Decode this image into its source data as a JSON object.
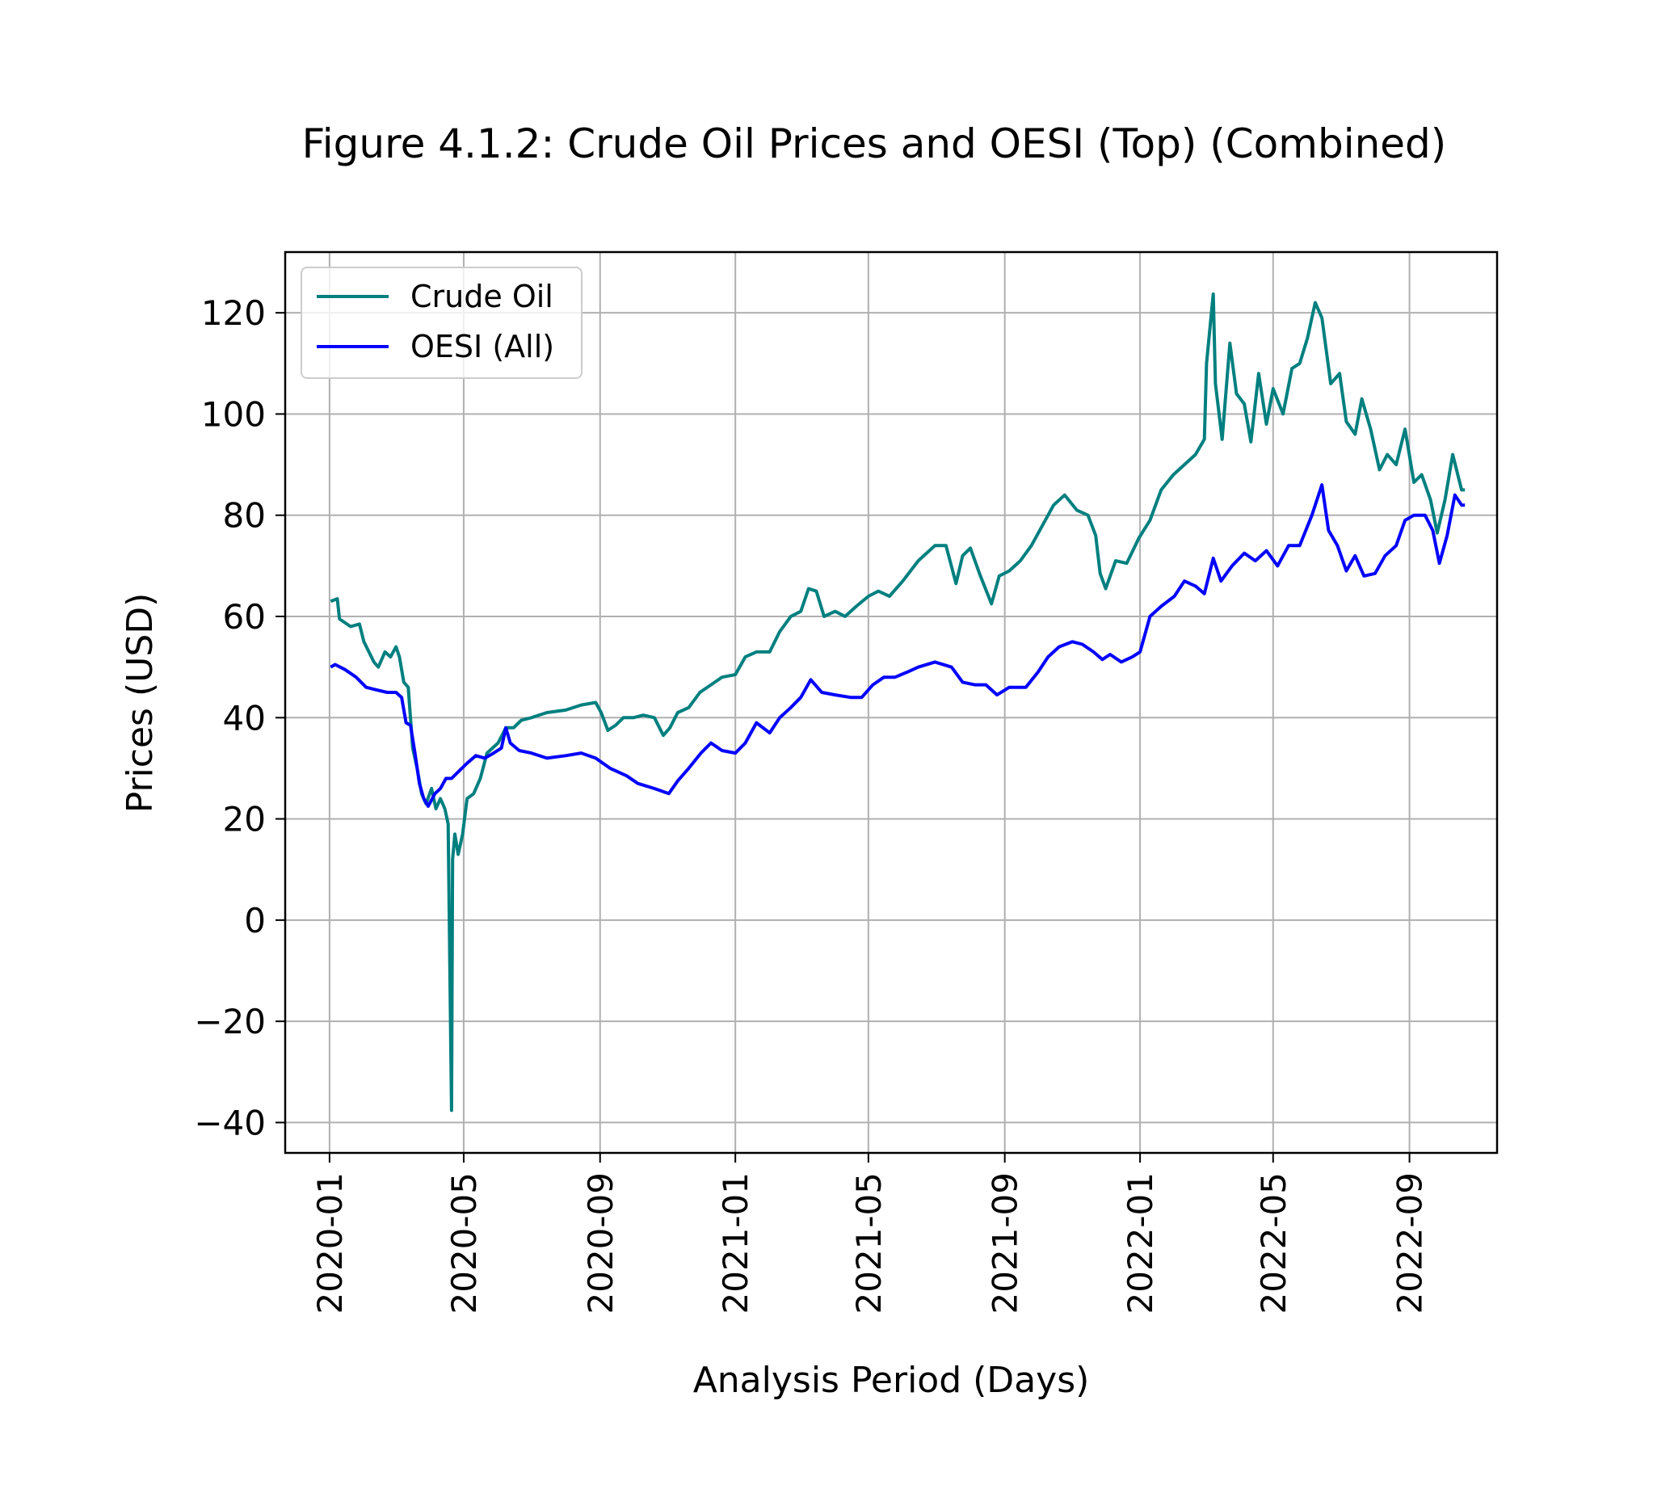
{
  "chart_data": {
    "type": "line",
    "title": "Figure 4.1.2: Crude Oil Prices and OESI (Top) (Combined)",
    "xlabel": "Analysis Period (Days)",
    "ylabel": "Prices (USD)",
    "xlim": [
      "2019-11-22",
      "2022-11-19"
    ],
    "ylim": [
      -46,
      132
    ],
    "x_ticks": [
      "2020-01",
      "2020-05",
      "2020-09",
      "2021-01",
      "2021-05",
      "2021-09",
      "2022-01",
      "2022-05",
      "2022-09"
    ],
    "y_ticks": [
      -40,
      -20,
      0,
      20,
      40,
      60,
      80,
      100,
      120
    ],
    "y_tick_labels": [
      "−40",
      "−20",
      "0",
      "20",
      "40",
      "60",
      "80",
      "100",
      "120"
    ],
    "grid": true,
    "legend_position": "top-left",
    "series": [
      {
        "name": "Crude Oil",
        "color": "#007f7f",
        "points": [
          [
            "2020-01-02",
            63
          ],
          [
            "2020-01-08",
            63.5
          ],
          [
            "2020-01-10",
            59.5
          ],
          [
            "2020-01-20",
            58
          ],
          [
            "2020-01-28",
            58.5
          ],
          [
            "2020-02-01",
            55
          ],
          [
            "2020-02-10",
            51
          ],
          [
            "2020-02-14",
            50
          ],
          [
            "2020-02-20",
            53
          ],
          [
            "2020-02-25",
            52
          ],
          [
            "2020-03-01",
            54
          ],
          [
            "2020-03-04",
            52
          ],
          [
            "2020-03-08",
            47
          ],
          [
            "2020-03-12",
            46
          ],
          [
            "2020-03-16",
            34
          ],
          [
            "2020-03-20",
            30
          ],
          [
            "2020-03-24",
            25
          ],
          [
            "2020-03-28",
            23
          ],
          [
            "2020-04-02",
            26
          ],
          [
            "2020-04-06",
            22
          ],
          [
            "2020-04-10",
            24
          ],
          [
            "2020-04-14",
            22
          ],
          [
            "2020-04-17",
            19
          ],
          [
            "2020-04-20",
            -37.6
          ],
          [
            "2020-04-21",
            12
          ],
          [
            "2020-04-23",
            17
          ],
          [
            "2020-04-26",
            13
          ],
          [
            "2020-04-30",
            17
          ],
          [
            "2020-05-04",
            24
          ],
          [
            "2020-05-10",
            25
          ],
          [
            "2020-05-16",
            28
          ],
          [
            "2020-05-22",
            33
          ],
          [
            "2020-06-01",
            35
          ],
          [
            "2020-06-08",
            38
          ],
          [
            "2020-06-15",
            38
          ],
          [
            "2020-06-22",
            39.5
          ],
          [
            "2020-07-01",
            40
          ],
          [
            "2020-07-15",
            41
          ],
          [
            "2020-08-01",
            41.5
          ],
          [
            "2020-08-15",
            42.5
          ],
          [
            "2020-08-28",
            43
          ],
          [
            "2020-09-02",
            41
          ],
          [
            "2020-09-08",
            37.5
          ],
          [
            "2020-09-15",
            38.5
          ],
          [
            "2020-09-22",
            40
          ],
          [
            "2020-10-01",
            40
          ],
          [
            "2020-10-10",
            40.5
          ],
          [
            "2020-10-20",
            40
          ],
          [
            "2020-10-28",
            36.5
          ],
          [
            "2020-11-03",
            38
          ],
          [
            "2020-11-10",
            41
          ],
          [
            "2020-11-20",
            42
          ],
          [
            "2020-11-30",
            45
          ],
          [
            "2020-12-10",
            46.5
          ],
          [
            "2020-12-20",
            48
          ],
          [
            "2021-01-01",
            48.5
          ],
          [
            "2021-01-10",
            52
          ],
          [
            "2021-01-20",
            53
          ],
          [
            "2021-02-01",
            53
          ],
          [
            "2021-02-10",
            57
          ],
          [
            "2021-02-20",
            60
          ],
          [
            "2021-03-01",
            61
          ],
          [
            "2021-03-08",
            65.5
          ],
          [
            "2021-03-15",
            65
          ],
          [
            "2021-03-22",
            60
          ],
          [
            "2021-04-01",
            61
          ],
          [
            "2021-04-10",
            60
          ],
          [
            "2021-04-20",
            62
          ],
          [
            "2021-05-01",
            64
          ],
          [
            "2021-05-10",
            65
          ],
          [
            "2021-05-20",
            64
          ],
          [
            "2021-06-01",
            67
          ],
          [
            "2021-06-15",
            71
          ],
          [
            "2021-06-30",
            74
          ],
          [
            "2021-07-10",
            74
          ],
          [
            "2021-07-19",
            66.5
          ],
          [
            "2021-07-25",
            72
          ],
          [
            "2021-08-01",
            73.5
          ],
          [
            "2021-08-10",
            68
          ],
          [
            "2021-08-20",
            62.5
          ],
          [
            "2021-08-27",
            68
          ],
          [
            "2021-09-05",
            69
          ],
          [
            "2021-09-15",
            71
          ],
          [
            "2021-09-25",
            74
          ],
          [
            "2021-10-05",
            78
          ],
          [
            "2021-10-15",
            82
          ],
          [
            "2021-10-25",
            84
          ],
          [
            "2021-11-05",
            81
          ],
          [
            "2021-11-15",
            80
          ],
          [
            "2021-11-22",
            76
          ],
          [
            "2021-11-26",
            68.5
          ],
          [
            "2021-12-01",
            65.5
          ],
          [
            "2021-12-10",
            71
          ],
          [
            "2021-12-20",
            70.5
          ],
          [
            "2021-12-31",
            75.5
          ],
          [
            "2022-01-10",
            79
          ],
          [
            "2022-01-20",
            85
          ],
          [
            "2022-01-31",
            88
          ],
          [
            "2022-02-10",
            90
          ],
          [
            "2022-02-20",
            92
          ],
          [
            "2022-02-28",
            95
          ],
          [
            "2022-03-02",
            110
          ],
          [
            "2022-03-08",
            123.7
          ],
          [
            "2022-03-10",
            106
          ],
          [
            "2022-03-16",
            95
          ],
          [
            "2022-03-23",
            114
          ],
          [
            "2022-03-29",
            104
          ],
          [
            "2022-04-05",
            102
          ],
          [
            "2022-04-11",
            94.5
          ],
          [
            "2022-04-18",
            108
          ],
          [
            "2022-04-25",
            98
          ],
          [
            "2022-05-01",
            105
          ],
          [
            "2022-05-10",
            100
          ],
          [
            "2022-05-18",
            109
          ],
          [
            "2022-05-25",
            110
          ],
          [
            "2022-06-01",
            115
          ],
          [
            "2022-06-08",
            122
          ],
          [
            "2022-06-14",
            119
          ],
          [
            "2022-06-22",
            106
          ],
          [
            "2022-06-30",
            108
          ],
          [
            "2022-07-06",
            98.5
          ],
          [
            "2022-07-14",
            96
          ],
          [
            "2022-07-20",
            103
          ],
          [
            "2022-07-28",
            97
          ],
          [
            "2022-08-05",
            89
          ],
          [
            "2022-08-12",
            92
          ],
          [
            "2022-08-20",
            90
          ],
          [
            "2022-08-28",
            97
          ],
          [
            "2022-09-05",
            86.5
          ],
          [
            "2022-09-12",
            88
          ],
          [
            "2022-09-20",
            83
          ],
          [
            "2022-09-26",
            76.5
          ],
          [
            "2022-10-03",
            83
          ],
          [
            "2022-10-10",
            92
          ],
          [
            "2022-10-18",
            85
          ],
          [
            "2022-10-21",
            85
          ]
        ]
      },
      {
        "name": "OESI (All)",
        "color": "#0000ff",
        "points": [
          [
            "2020-01-02",
            50
          ],
          [
            "2020-01-06",
            50.5
          ],
          [
            "2020-01-15",
            49.5
          ],
          [
            "2020-01-25",
            48
          ],
          [
            "2020-02-03",
            46
          ],
          [
            "2020-02-12",
            45.5
          ],
          [
            "2020-02-22",
            45
          ],
          [
            "2020-03-01",
            45
          ],
          [
            "2020-03-06",
            44
          ],
          [
            "2020-03-10",
            39
          ],
          [
            "2020-03-14",
            38.5
          ],
          [
            "2020-03-18",
            33
          ],
          [
            "2020-03-22",
            27
          ],
          [
            "2020-03-26",
            24
          ],
          [
            "2020-03-30",
            22.5
          ],
          [
            "2020-04-05",
            25
          ],
          [
            "2020-04-10",
            26
          ],
          [
            "2020-04-15",
            28
          ],
          [
            "2020-04-20",
            28
          ],
          [
            "2020-04-27",
            29.5
          ],
          [
            "2020-05-04",
            31
          ],
          [
            "2020-05-12",
            32.5
          ],
          [
            "2020-05-20",
            32
          ],
          [
            "2020-05-28",
            33
          ],
          [
            "2020-06-04",
            34
          ],
          [
            "2020-06-08",
            38
          ],
          [
            "2020-06-12",
            35
          ],
          [
            "2020-06-20",
            33.5
          ],
          [
            "2020-07-01",
            33
          ],
          [
            "2020-07-15",
            32
          ],
          [
            "2020-08-01",
            32.5
          ],
          [
            "2020-08-15",
            33
          ],
          [
            "2020-08-28",
            32
          ],
          [
            "2020-09-10",
            30
          ],
          [
            "2020-09-25",
            28.5
          ],
          [
            "2020-10-05",
            27
          ],
          [
            "2020-10-20",
            26
          ],
          [
            "2020-11-02",
            25
          ],
          [
            "2020-11-10",
            27.5
          ],
          [
            "2020-11-20",
            30
          ],
          [
            "2020-12-01",
            33
          ],
          [
            "2020-12-10",
            35
          ],
          [
            "2020-12-20",
            33.5
          ],
          [
            "2021-01-01",
            33
          ],
          [
            "2021-01-10",
            35
          ],
          [
            "2021-01-20",
            39
          ],
          [
            "2021-02-01",
            37
          ],
          [
            "2021-02-10",
            40
          ],
          [
            "2021-02-20",
            42
          ],
          [
            "2021-03-01",
            44
          ],
          [
            "2021-03-10",
            47.5
          ],
          [
            "2021-03-20",
            45
          ],
          [
            "2021-04-01",
            44.5
          ],
          [
            "2021-04-15",
            44
          ],
          [
            "2021-04-25",
            44
          ],
          [
            "2021-05-05",
            46.5
          ],
          [
            "2021-05-15",
            48
          ],
          [
            "2021-05-25",
            48
          ],
          [
            "2021-06-05",
            49
          ],
          [
            "2021-06-15",
            50
          ],
          [
            "2021-06-30",
            51
          ],
          [
            "2021-07-15",
            50
          ],
          [
            "2021-07-25",
            47
          ],
          [
            "2021-08-05",
            46.5
          ],
          [
            "2021-08-15",
            46.5
          ],
          [
            "2021-08-25",
            44.5
          ],
          [
            "2021-09-05",
            46
          ],
          [
            "2021-09-20",
            46
          ],
          [
            "2021-10-01",
            49
          ],
          [
            "2021-10-10",
            52
          ],
          [
            "2021-10-20",
            54
          ],
          [
            "2021-11-01",
            55
          ],
          [
            "2021-11-10",
            54.5
          ],
          [
            "2021-11-20",
            53
          ],
          [
            "2021-11-28",
            51.5
          ],
          [
            "2021-12-05",
            52.5
          ],
          [
            "2021-12-15",
            51
          ],
          [
            "2021-12-25",
            52
          ],
          [
            "2022-01-01",
            53
          ],
          [
            "2022-01-10",
            60
          ],
          [
            "2022-01-20",
            62
          ],
          [
            "2022-02-01",
            64
          ],
          [
            "2022-02-10",
            67
          ],
          [
            "2022-02-20",
            66
          ],
          [
            "2022-02-28",
            64.5
          ],
          [
            "2022-03-08",
            71.5
          ],
          [
            "2022-03-15",
            67
          ],
          [
            "2022-03-25",
            70
          ],
          [
            "2022-04-05",
            72.5
          ],
          [
            "2022-04-15",
            71
          ],
          [
            "2022-04-25",
            73
          ],
          [
            "2022-05-05",
            70
          ],
          [
            "2022-05-15",
            74
          ],
          [
            "2022-05-25",
            74
          ],
          [
            "2022-06-05",
            80
          ],
          [
            "2022-06-14",
            86
          ],
          [
            "2022-06-20",
            77
          ],
          [
            "2022-06-28",
            74
          ],
          [
            "2022-07-06",
            69
          ],
          [
            "2022-07-14",
            72
          ],
          [
            "2022-07-22",
            68
          ],
          [
            "2022-08-01",
            68.5
          ],
          [
            "2022-08-10",
            72
          ],
          [
            "2022-08-20",
            74
          ],
          [
            "2022-08-28",
            79
          ],
          [
            "2022-09-05",
            80
          ],
          [
            "2022-09-15",
            80
          ],
          [
            "2022-09-22",
            77
          ],
          [
            "2022-09-28",
            70.5
          ],
          [
            "2022-10-05",
            76
          ],
          [
            "2022-10-12",
            84
          ],
          [
            "2022-10-18",
            82
          ],
          [
            "2022-10-21",
            82
          ]
        ]
      }
    ]
  }
}
